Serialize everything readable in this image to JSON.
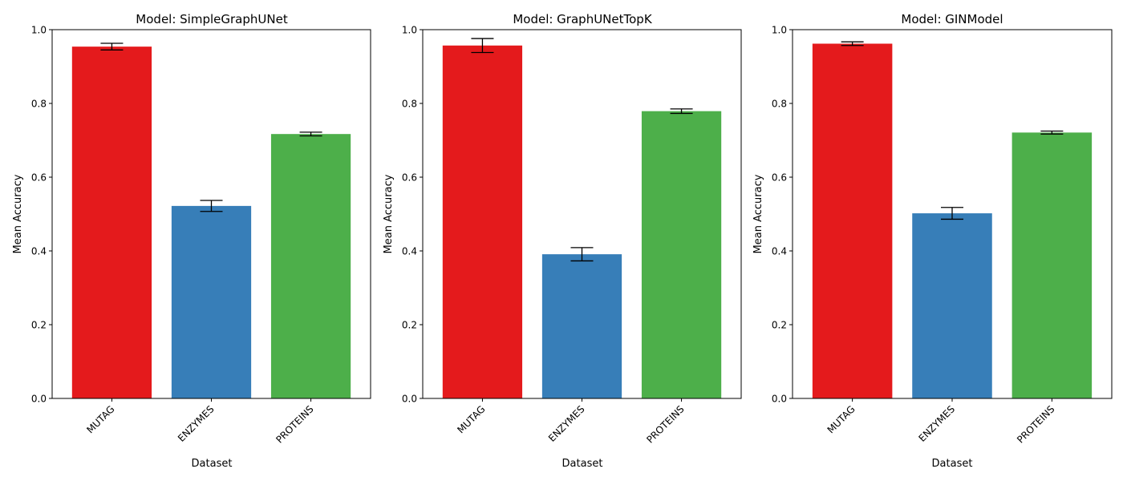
{
  "chart_data": [
    {
      "type": "bar",
      "title": "Model: SimpleGraphUNet",
      "xlabel": "Dataset",
      "ylabel": "Mean Accuracy",
      "categories": [
        "MUTAG",
        "ENZYMES",
        "PROTEINS"
      ],
      "values": [
        0.954,
        0.522,
        0.717
      ],
      "errors": [
        0.009,
        0.015,
        0.005
      ],
      "colors": [
        "#e41a1c",
        "#377eb8",
        "#4daf4a"
      ],
      "ylim": [
        0,
        1
      ],
      "yticks": [
        "0.0",
        "0.2",
        "0.4",
        "0.6",
        "0.8",
        "1.0"
      ],
      "grid": false
    },
    {
      "type": "bar",
      "title": "Model: GraphUNetTopK",
      "xlabel": "Dataset",
      "ylabel": "Mean Accuracy",
      "categories": [
        "MUTAG",
        "ENZYMES",
        "PROTEINS"
      ],
      "values": [
        0.957,
        0.391,
        0.779
      ],
      "errors": [
        0.019,
        0.018,
        0.006
      ],
      "colors": [
        "#e41a1c",
        "#377eb8",
        "#4daf4a"
      ],
      "ylim": [
        0,
        1
      ],
      "yticks": [
        "0.0",
        "0.2",
        "0.4",
        "0.6",
        "0.8",
        "1.0"
      ],
      "grid": false
    },
    {
      "type": "bar",
      "title": "Model: GINModel",
      "xlabel": "Dataset",
      "ylabel": "Mean Accuracy",
      "categories": [
        "MUTAG",
        "ENZYMES",
        "PROTEINS"
      ],
      "values": [
        0.962,
        0.502,
        0.721
      ],
      "errors": [
        0.005,
        0.016,
        0.004
      ],
      "colors": [
        "#e41a1c",
        "#377eb8",
        "#4daf4a"
      ],
      "ylim": [
        0,
        1
      ],
      "yticks": [
        "0.0",
        "0.2",
        "0.4",
        "0.6",
        "0.8",
        "1.0"
      ],
      "grid": false
    }
  ]
}
